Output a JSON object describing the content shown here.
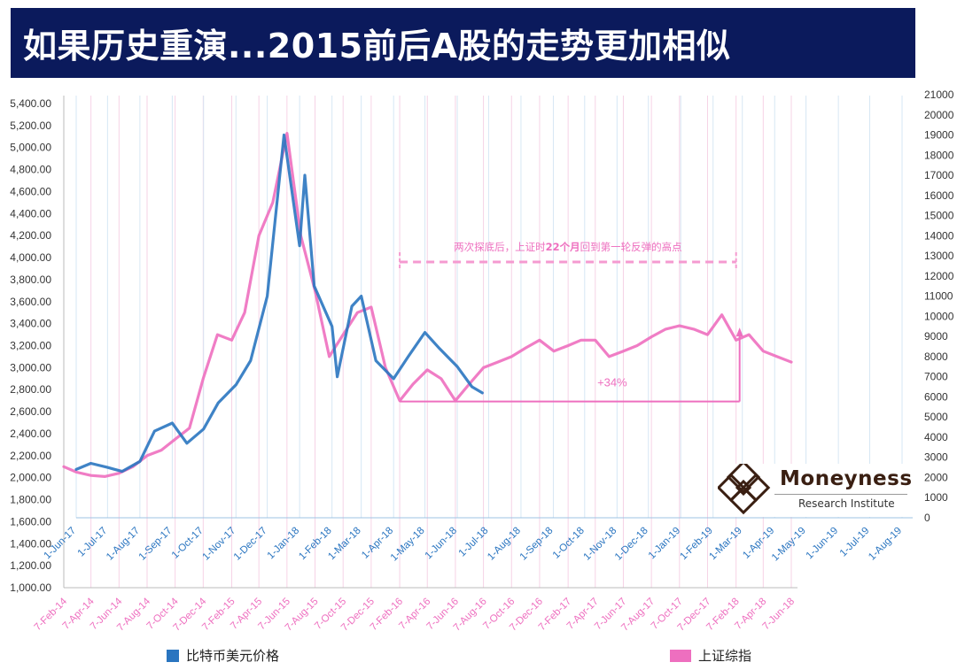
{
  "header": {
    "title": "如果历史重演...2015前后A股的走势更加相似"
  },
  "legend": {
    "btc": {
      "label": "比特币美元价格",
      "color": "#2a75c0"
    },
    "sh": {
      "label": "上证综指",
      "color": "#ee6fbf"
    }
  },
  "annotation": {
    "note_prefix": "两次探底后，上证时",
    "note_bold": "22个月",
    "note_suffix": "回到第一轮反弹的高点",
    "gain": "+34%"
  },
  "brand": {
    "name": "Moneyness",
    "sub": "Research Institute"
  },
  "chart_data": {
    "type": "line",
    "title": "如果历史重演...2015前后A股的走势更加相似",
    "left_axis": {
      "series": "上证综指",
      "ylim": [
        1000,
        5400
      ],
      "ticks": [
        "1,000.00",
        "1,200.00",
        "1,400.00",
        "1,600.00",
        "1,800.00",
        "2,000.00",
        "2,200.00",
        "2,400.00",
        "2,600.00",
        "2,800.00",
        "3,000.00",
        "3,200.00",
        "3,400.00",
        "3,600.00",
        "3,800.00",
        "4,000.00",
        "4,200.00",
        "4,400.00",
        "4,600.00",
        "4,800.00",
        "5,000.00",
        "5,200.00",
        "5,400.00"
      ],
      "x_labels": [
        "7-Feb-14",
        "7-Apr-14",
        "7-Jun-14",
        "7-Aug-14",
        "7-Oct-14",
        "7-Dec-14",
        "7-Feb-15",
        "7-Apr-15",
        "7-Jun-15",
        "7-Aug-15",
        "7-Oct-15",
        "7-Dec-15",
        "7-Feb-16",
        "7-Apr-16",
        "7-Jun-16",
        "7-Aug-16",
        "7-Oct-16",
        "7-Dec-16",
        "7-Feb-17",
        "7-Apr-17",
        "7-Jun-17",
        "7-Aug-17",
        "7-Oct-17",
        "7-Dec-17",
        "7-Feb-18",
        "7-Apr-18",
        "7-Jun-18"
      ]
    },
    "right_axis": {
      "series": "比特币美元价格",
      "ylim": [
        0,
        21000
      ],
      "ticks": [
        "0",
        "1000",
        "2000",
        "3000",
        "4000",
        "5000",
        "6000",
        "7000",
        "8000",
        "9000",
        "10000",
        "11000",
        "12000",
        "13000",
        "14000",
        "15000",
        "16000",
        "17000",
        "18000",
        "19000",
        "20000",
        "21000"
      ],
      "x_labels": [
        "1-Jun-17",
        "1-Jul-17",
        "1-Aug-17",
        "1-Sep-17",
        "1-Oct-17",
        "1-Nov-17",
        "1-Dec-17",
        "1-Jan-18",
        "1-Feb-18",
        "1-Mar-18",
        "1-Apr-18",
        "1-May-18",
        "1-Jun-18",
        "1-Jul-18",
        "1-Aug-18",
        "1-Sep-18",
        "1-Oct-18",
        "1-Nov-18",
        "1-Dec-18",
        "1-Jan-19",
        "1-Feb-19",
        "1-Mar-19",
        "1-Apr-19",
        "1-May-19",
        "1-Jun-19",
        "1-Jul-19",
        "1-Aug-19"
      ]
    },
    "series": [
      {
        "name": "上证综指",
        "axis": "left",
        "color": "#ee6fbf",
        "x": [
          "7-Feb-14",
          "7-Mar-14",
          "7-Apr-14",
          "7-May-14",
          "7-Jun-14",
          "7-Jul-14",
          "7-Aug-14",
          "7-Sep-14",
          "7-Oct-14",
          "7-Nov-14",
          "7-Dec-14",
          "7-Jan-15",
          "7-Feb-15",
          "7-Mar-15",
          "7-Apr-15",
          "7-May-15",
          "7-Jun-15",
          "7-Jul-15",
          "7-Aug-15",
          "7-Sep-15",
          "7-Oct-15",
          "7-Nov-15",
          "7-Dec-15",
          "7-Jan-16",
          "7-Feb-16",
          "7-Mar-16",
          "7-Apr-16",
          "7-May-16",
          "7-Jun-16",
          "7-Jul-16",
          "7-Aug-16",
          "7-Sep-16",
          "7-Oct-16",
          "7-Nov-16",
          "7-Dec-16",
          "7-Jan-17",
          "7-Feb-17",
          "7-Mar-17",
          "7-Apr-17",
          "7-May-17",
          "7-Jun-17",
          "7-Jul-17",
          "7-Aug-17",
          "7-Sep-17",
          "7-Oct-17",
          "7-Nov-17",
          "7-Dec-17",
          "7-Jan-18",
          "7-Feb-18",
          "7-Mar-18",
          "7-Apr-18",
          "7-May-18",
          "7-Jun-18"
        ],
        "values": [
          2100,
          2050,
          2020,
          2010,
          2040,
          2100,
          2200,
          2250,
          2350,
          2450,
          2900,
          3300,
          3250,
          3500,
          4200,
          4500,
          5130,
          4200,
          3700,
          3100,
          3300,
          3500,
          3550,
          3000,
          2700,
          2850,
          2980,
          2900,
          2700,
          2850,
          3000,
          3050,
          3100,
          3180,
          3250,
          3150,
          3200,
          3250,
          3250,
          3100,
          3150,
          3200,
          3280,
          3350,
          3380,
          3350,
          3300,
          3480,
          3250,
          3300,
          3150,
          3100,
          3050
        ]
      },
      {
        "name": "比特币美元价格",
        "axis": "right",
        "color": "#2a75c0",
        "x": [
          "1-Jun-17",
          "15-Jun-17",
          "1-Jul-17",
          "15-Jul-17",
          "1-Aug-17",
          "15-Aug-17",
          "1-Sep-17",
          "15-Sep-17",
          "1-Oct-17",
          "15-Oct-17",
          "1-Nov-17",
          "15-Nov-17",
          "1-Dec-17",
          "17-Dec-17",
          "1-Jan-18",
          "6-Jan-18",
          "15-Jan-18",
          "1-Feb-18",
          "6-Feb-18",
          "20-Feb-18",
          "1-Mar-18",
          "15-Mar-18",
          "1-Apr-18",
          "15-Apr-18",
          "1-May-18",
          "15-May-18",
          "1-Jun-18",
          "15-Jun-18",
          "25-Jun-18"
        ],
        "values": [
          2400,
          2700,
          2500,
          2300,
          2800,
          4300,
          4700,
          3700,
          4400,
          5700,
          6600,
          7800,
          11000,
          19000,
          13500,
          17000,
          11500,
          9500,
          7000,
          10500,
          11000,
          7800,
          6900,
          8000,
          9200,
          8400,
          7500,
          6500,
          6200
        ]
      }
    ],
    "annotations": [
      "两次探底后，上证时22个月回到第一轮反弹的高点",
      "+34%"
    ],
    "grid": "vertical only",
    "legend_position": "bottom"
  }
}
